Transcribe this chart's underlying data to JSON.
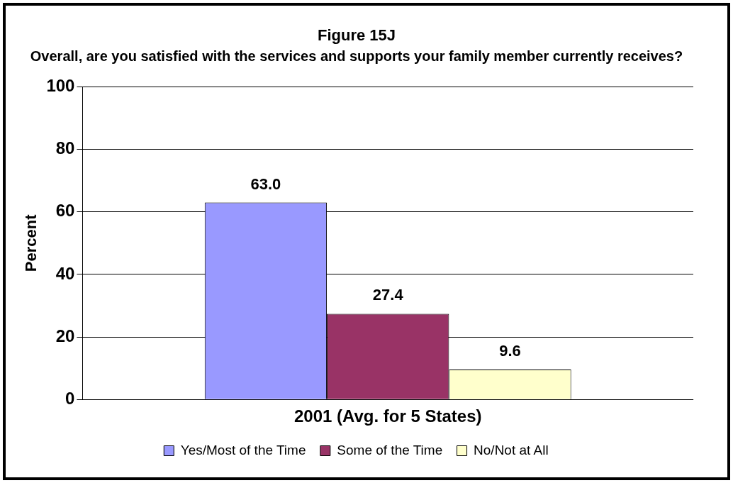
{
  "chart_data": {
    "type": "bar",
    "title": "Figure 15J",
    "subtitle": "Overall, are you satisfied with the services and supports your family member currently receives?",
    "ylabel": "Percent",
    "categories": [
      "2001 (Avg. for 5 States)"
    ],
    "series": [
      {
        "name": "Yes/Most of the Time",
        "color": "#9999ff",
        "values": [
          63.0
        ],
        "value_labels": [
          "63.0"
        ]
      },
      {
        "name": "Some of the Time",
        "color": "#993366",
        "values": [
          27.4
        ],
        "value_labels": [
          "27.4"
        ]
      },
      {
        "name": "No/Not at All",
        "color": "#ffffcc",
        "values": [
          9.6
        ],
        "value_labels": [
          "9.6"
        ]
      }
    ],
    "ylim": [
      0,
      100
    ],
    "yticks": [
      0,
      20,
      40,
      60,
      80,
      100
    ],
    "grid": "y",
    "legend": "bottom"
  }
}
